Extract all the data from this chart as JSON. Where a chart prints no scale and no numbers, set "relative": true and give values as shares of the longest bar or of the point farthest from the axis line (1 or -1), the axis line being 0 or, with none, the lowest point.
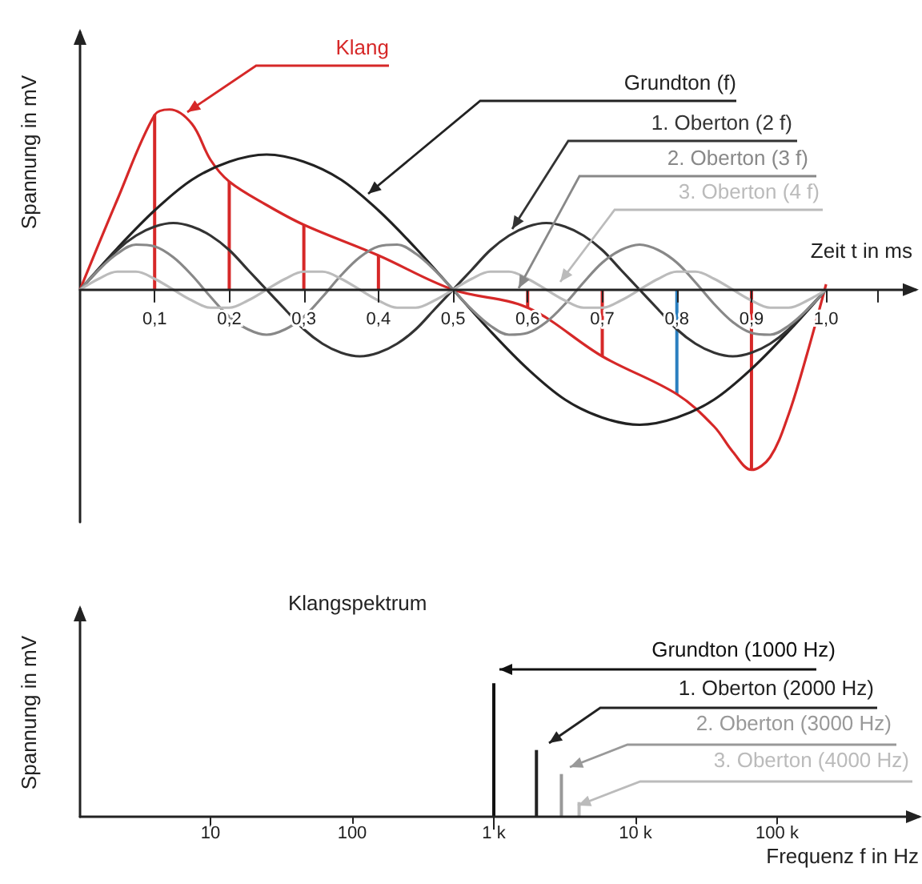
{
  "chart_data": [
    {
      "type": "line",
      "xlabel": "Zeit t in ms",
      "ylabel": "Spannung in mV",
      "relative": true,
      "grid": false,
      "marker": "none",
      "xlim": [
        0,
        1.12
      ],
      "xticks": [
        {
          "value": 0.1,
          "label": "0,1"
        },
        {
          "value": 0.2,
          "label": "0,2"
        },
        {
          "value": 0.3,
          "label": "0,3"
        },
        {
          "value": 0.4,
          "label": "0,4"
        },
        {
          "value": 0.5,
          "label": "0,5"
        },
        {
          "value": 0.6,
          "label": "0,6"
        },
        {
          "value": 0.7,
          "label": "0,7"
        },
        {
          "value": 0.8,
          "label": "0,8"
        },
        {
          "value": 0.9,
          "label": "0,9"
        },
        {
          "value": 1.0,
          "label": "1,0"
        },
        {
          "value": 1.07,
          "label": null
        }
      ],
      "series": [
        {
          "name": "Klang",
          "color": "#d62828",
          "x": [
            0,
            0.05,
            0.1,
            0.12,
            0.15,
            0.175,
            0.2,
            0.25,
            0.3,
            0.4,
            0.5,
            0.6,
            0.7,
            0.8,
            0.85,
            0.875,
            0.9,
            0.925,
            0.95,
            0.975,
            1.0
          ],
          "values": [
            0,
            0.5,
            0.97,
            1.0,
            0.92,
            0.72,
            0.6,
            0.47,
            0.36,
            0.19,
            0,
            -0.1,
            -0.37,
            -0.58,
            -0.76,
            -0.9,
            -1.0,
            -0.93,
            -0.69,
            -0.35,
            0.03
          ]
        },
        {
          "name": "Grundton (f)",
          "color": "#222222",
          "x": [
            0,
            0.05,
            0.1,
            0.15,
            0.2,
            0.25,
            0.3,
            0.35,
            0.4,
            0.45,
            0.5,
            0.55,
            0.6,
            0.65,
            0.7,
            0.75,
            0.8,
            0.85,
            0.9,
            0.95,
            1.0
          ],
          "values": [
            0,
            0.23,
            0.44,
            0.61,
            0.71,
            0.75,
            0.71,
            0.61,
            0.44,
            0.23,
            0,
            -0.23,
            -0.44,
            -0.61,
            -0.71,
            -0.75,
            -0.71,
            -0.61,
            -0.44,
            -0.23,
            0
          ]
        },
        {
          "name": "1. Oberton (2 f)",
          "color": "#333333",
          "x": [
            0,
            0.025,
            0.05,
            0.075,
            0.1,
            0.125,
            0.15,
            0.175,
            0.2,
            0.225,
            0.25,
            0.275,
            0.3,
            0.325,
            0.35,
            0.375,
            0.4,
            0.425,
            0.45,
            0.475,
            0.5,
            0.525,
            0.55,
            0.575,
            0.6,
            0.625,
            0.65,
            0.675,
            0.7,
            0.725,
            0.75,
            0.775,
            0.8,
            0.825,
            0.85,
            0.875,
            0.9,
            0.925,
            0.95,
            0.975,
            1.0
          ],
          "values": [
            0,
            0.11,
            0.22,
            0.3,
            0.35,
            0.37,
            0.35,
            0.3,
            0.22,
            0.11,
            0,
            -0.11,
            -0.22,
            -0.3,
            -0.35,
            -0.37,
            -0.35,
            -0.3,
            -0.22,
            -0.11,
            0,
            0.11,
            0.22,
            0.3,
            0.35,
            0.37,
            0.35,
            0.3,
            0.22,
            0.11,
            0,
            -0.11,
            -0.22,
            -0.3,
            -0.35,
            -0.37,
            -0.35,
            -0.3,
            -0.22,
            -0.11,
            0
          ]
        },
        {
          "name": "2. Oberton (3 f)",
          "color": "#888888",
          "x": [
            0,
            0.025,
            0.05,
            0.075,
            0.1,
            0.125,
            0.15,
            0.175,
            0.2,
            0.225,
            0.25,
            0.275,
            0.3,
            0.325,
            0.35,
            0.375,
            0.4,
            0.425,
            0.45,
            0.475,
            0.5,
            0.525,
            0.55,
            0.575,
            0.6,
            0.625,
            0.65,
            0.675,
            0.7,
            0.725,
            0.75,
            0.775,
            0.8,
            0.825,
            0.85,
            0.875,
            0.9,
            0.925,
            0.95,
            0.975,
            1.0
          ],
          "values": [
            0,
            0.11,
            0.2,
            0.25,
            0.24,
            0.18,
            0.08,
            -0.04,
            -0.15,
            -0.22,
            -0.25,
            -0.22,
            -0.15,
            -0.04,
            0.08,
            0.18,
            0.24,
            0.25,
            0.2,
            0.11,
            0,
            -0.11,
            -0.2,
            -0.25,
            -0.24,
            -0.18,
            -0.08,
            0.04,
            0.15,
            0.22,
            0.25,
            0.22,
            0.15,
            0.04,
            -0.08,
            -0.18,
            -0.24,
            -0.25,
            -0.2,
            -0.11,
            0
          ]
        },
        {
          "name": "3. Oberton (4 f)",
          "color": "#bbbbbb",
          "x": [
            0,
            0.025,
            0.05,
            0.075,
            0.1,
            0.125,
            0.15,
            0.175,
            0.2,
            0.225,
            0.25,
            0.275,
            0.3,
            0.325,
            0.35,
            0.375,
            0.4,
            0.425,
            0.45,
            0.475,
            0.5,
            0.525,
            0.55,
            0.575,
            0.6,
            0.625,
            0.65,
            0.675,
            0.7,
            0.725,
            0.75,
            0.775,
            0.8,
            0.825,
            0.85,
            0.875,
            0.9,
            0.925,
            0.95,
            0.975,
            1.0
          ],
          "values": [
            0,
            0.06,
            0.1,
            0.1,
            0.06,
            0,
            -0.06,
            -0.1,
            -0.1,
            -0.06,
            0,
            0.06,
            0.1,
            0.1,
            0.06,
            0,
            -0.06,
            -0.1,
            -0.1,
            -0.06,
            0,
            0.06,
            0.1,
            0.1,
            0.06,
            0,
            -0.06,
            -0.1,
            -0.1,
            -0.06,
            0,
            0.06,
            0.1,
            0.1,
            0.06,
            0,
            -0.06,
            -0.1,
            -0.1,
            -0.06,
            0
          ]
        },
        {
          "type": "bar",
          "x": [
            0.1,
            0.2,
            0.3,
            0.4,
            0.6,
            0.7,
            0.8,
            0.9
          ],
          "values": [
            0.97,
            0.6,
            0.36,
            0.19,
            -0.1,
            -0.37,
            -0.58,
            -1.0
          ],
          "colors": [
            "#d62828",
            "#d62828",
            "#d62828",
            "#d62828",
            "#d62828",
            "#d62828",
            "#2a7fc0",
            "#d62828"
          ]
        }
      ]
    },
    {
      "type": "bar",
      "title": "Klangspektrum",
      "xlabel": "Frequenz f in Hz",
      "ylabel": "Spannung in mV",
      "relative": true,
      "grid": false,
      "log": "x",
      "xlim": [
        1.2,
        1000000
      ],
      "xticks": [
        {
          "value": 10,
          "label": "10"
        },
        {
          "value": 100,
          "label": "100"
        },
        {
          "value": 1000,
          "label": "1 k"
        },
        {
          "value": 10000,
          "label": "10 k"
        },
        {
          "value": 100000,
          "label": "100 k"
        }
      ],
      "series": [
        {
          "name": "Grundton (1000 Hz)",
          "color": "#111111",
          "x": [
            1000
          ],
          "values": [
            1
          ]
        },
        {
          "name": "1. Oberton (2000 Hz)",
          "color": "#222222",
          "x": [
            2000
          ],
          "values": [
            0.5
          ]
        },
        {
          "name": "2. Oberton (3000 Hz)",
          "color": "#999999",
          "x": [
            3000
          ],
          "values": [
            0.32
          ]
        },
        {
          "name": "3. Oberton (4000 Hz)",
          "color": "#bbbbbb",
          "x": [
            4000
          ],
          "values": [
            0.11
          ]
        }
      ]
    }
  ]
}
